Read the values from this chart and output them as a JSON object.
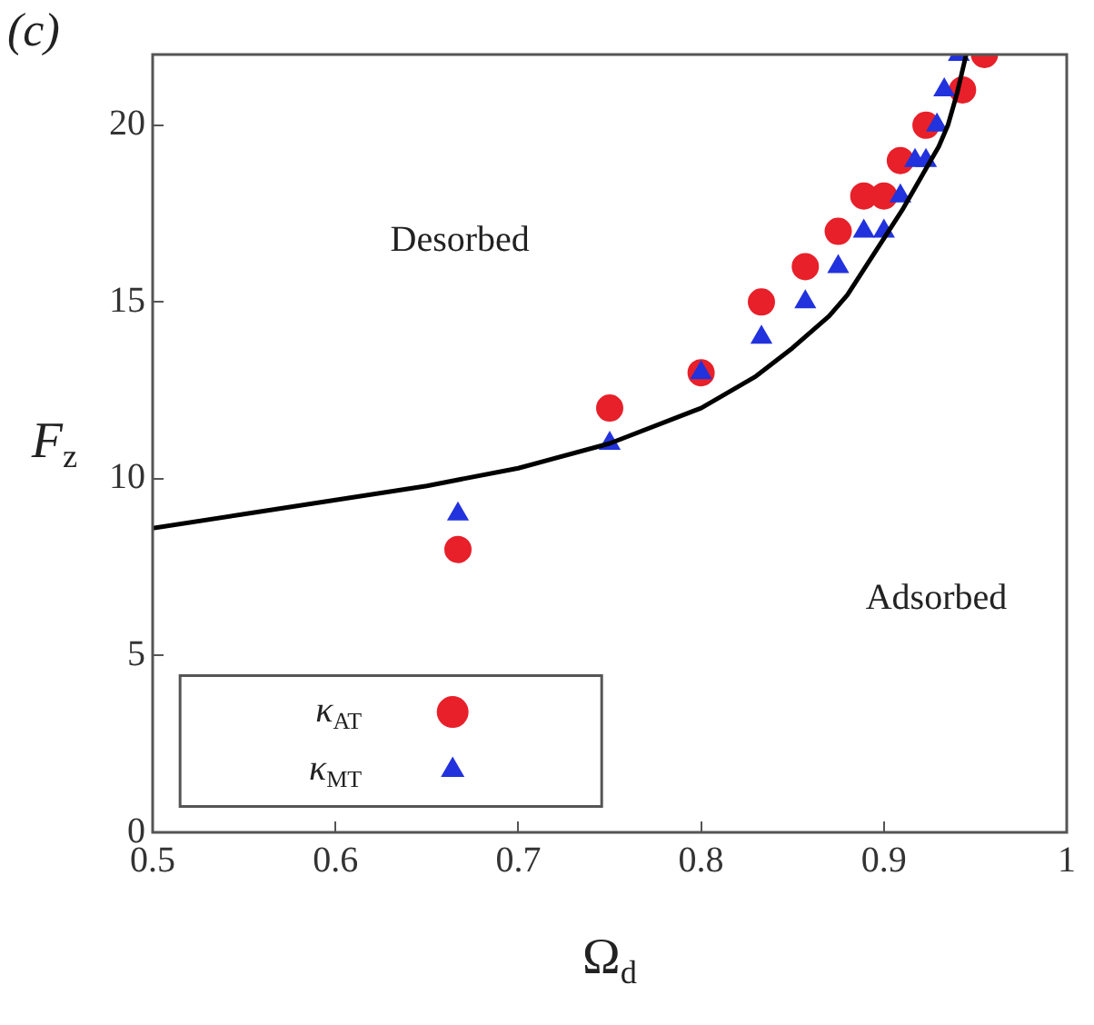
{
  "chart_data": {
    "type": "scatter",
    "xlabel": "Ω$_{d}$",
    "ylabel": "F$_{z}$",
    "annotations": [
      "(c)",
      "Desorbed",
      "Adsorbed"
    ],
    "xlim": [
      0.5,
      1
    ],
    "xticks": [
      0.5,
      0.6,
      0.7,
      0.8,
      0.9,
      1
    ],
    "ylim": [
      0,
      22
    ],
    "yticks": [
      0,
      5,
      10,
      15,
      20
    ],
    "grid": false,
    "legend": "bottom left",
    "series": [
      {
        "name": "κ$_{AT}$",
        "color": "#e8202a",
        "marker": "circle",
        "x": [
          0.667,
          0.75,
          0.8,
          0.833,
          0.857,
          0.875,
          0.889,
          0.9,
          0.909,
          0.923,
          0.943,
          0.955
        ],
        "values": [
          8,
          12,
          13,
          15,
          16,
          17,
          18,
          18,
          19,
          20,
          21,
          22
        ]
      },
      {
        "name": "κ$_{MT}$",
        "color": "#2233dd",
        "marker": "triangle",
        "x": [
          0.667,
          0.75,
          0.8,
          0.833,
          0.857,
          0.875,
          0.889,
          0.9,
          0.909,
          0.917,
          0.923,
          0.929,
          0.933,
          0.941
        ],
        "values": [
          9,
          11,
          13,
          14,
          15,
          16,
          17,
          17,
          18,
          19,
          19,
          20,
          21,
          22
        ]
      },
      {
        "type": "line",
        "color": "#000000",
        "marker": "none",
        "line_style": "solid",
        "x": [
          0.5,
          0.55,
          0.6,
          0.65,
          0.7,
          0.75,
          0.8,
          0.83,
          0.85,
          0.87,
          0.88,
          0.9,
          0.91,
          0.92,
          0.93,
          0.935,
          0.94,
          0.945
        ],
        "values": [
          8.6,
          9,
          9.4,
          9.8,
          10.3,
          11,
          12,
          12.9,
          13.7,
          14.6,
          15.2,
          16.8,
          17.6,
          18.5,
          19.4,
          20,
          20.9,
          22
        ]
      }
    ]
  }
}
